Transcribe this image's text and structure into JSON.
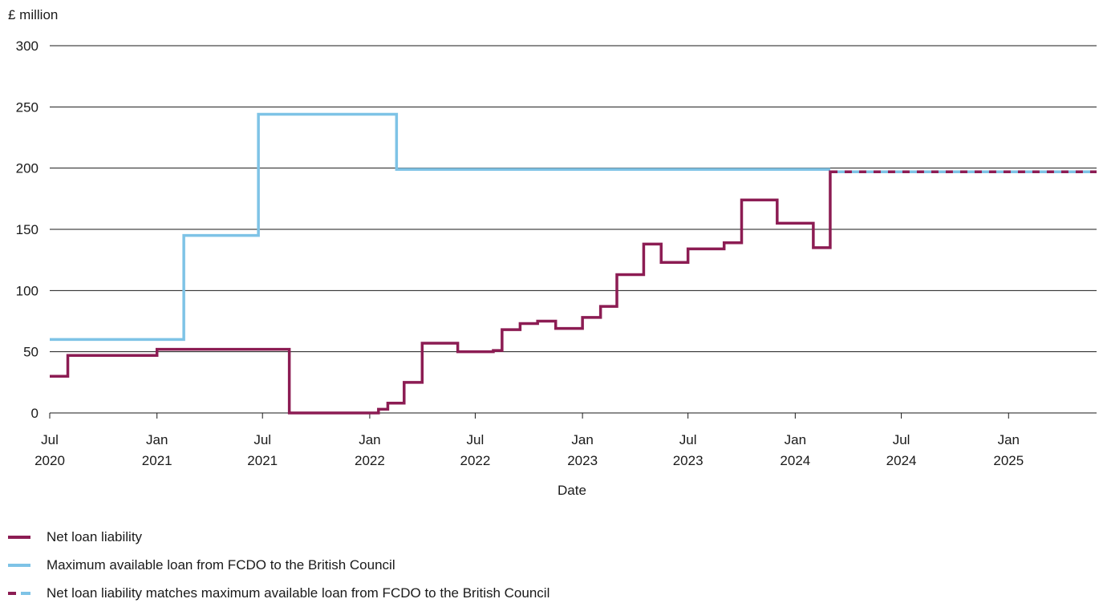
{
  "chart_data": {
    "type": "line",
    "ylabel": "£ million",
    "xlabel": "Date",
    "ylim": [
      0,
      300
    ],
    "yticks": [
      0,
      50,
      100,
      150,
      200,
      250,
      300
    ],
    "xlim": [
      "2020-07-01",
      "2025-06-01"
    ],
    "xticks": [
      {
        "date": "2020-07-01",
        "label1": "Jul",
        "label2": "2020"
      },
      {
        "date": "2021-01-01",
        "label1": "Jan",
        "label2": "2021"
      },
      {
        "date": "2021-07-01",
        "label1": "Jul",
        "label2": "2021"
      },
      {
        "date": "2022-01-01",
        "label1": "Jan",
        "label2": "2022"
      },
      {
        "date": "2022-07-01",
        "label1": "Jul",
        "label2": "2022"
      },
      {
        "date": "2023-01-01",
        "label1": "Jan",
        "label2": "2023"
      },
      {
        "date": "2023-07-01",
        "label1": "Jul",
        "label2": "2023"
      },
      {
        "date": "2024-01-01",
        "label1": "Jan",
        "label2": "2024"
      },
      {
        "date": "2024-07-01",
        "label1": "Jul",
        "label2": "2024"
      },
      {
        "date": "2025-01-01",
        "label1": "Jan",
        "label2": "2025"
      }
    ],
    "grid": "horizontal",
    "legend_position": "bottom",
    "series": [
      {
        "name": "Net loan liability",
        "color": "#8c1c53",
        "style": "solid-step",
        "points": [
          [
            "2020-07-01",
            30
          ],
          [
            "2020-08-01",
            47
          ],
          [
            "2021-01-01",
            52
          ],
          [
            "2021-08-16",
            0
          ],
          [
            "2022-01-16",
            3
          ],
          [
            "2022-02-01",
            8
          ],
          [
            "2022-03-01",
            25
          ],
          [
            "2022-04-01",
            57
          ],
          [
            "2022-06-01",
            50
          ],
          [
            "2022-08-01",
            51
          ],
          [
            "2022-08-16",
            68
          ],
          [
            "2022-09-16",
            73
          ],
          [
            "2022-10-16",
            75
          ],
          [
            "2022-11-16",
            69
          ],
          [
            "2023-01-01",
            78
          ],
          [
            "2023-02-01",
            87
          ],
          [
            "2023-03-01",
            113
          ],
          [
            "2023-04-16",
            138
          ],
          [
            "2023-05-16",
            123
          ],
          [
            "2023-07-01",
            134
          ],
          [
            "2023-09-01",
            139
          ],
          [
            "2023-10-01",
            174
          ],
          [
            "2023-12-01",
            155
          ],
          [
            "2024-02-01",
            135
          ],
          [
            "2024-03-01",
            197
          ],
          [
            "2024-03-16",
            197
          ]
        ]
      },
      {
        "name": "Maximum available loan from FCDO to the British Council",
        "color": "#7ec3e6",
        "style": "solid-step",
        "points": [
          [
            "2020-07-01",
            60
          ],
          [
            "2021-02-16",
            145
          ],
          [
            "2021-06-24",
            244
          ],
          [
            "2022-02-16",
            199
          ],
          [
            "2024-03-01",
            199
          ]
        ]
      },
      {
        "name": "Net loan liability matches maximum available loan from FCDO to the British Council",
        "colors": [
          "#8c1c53",
          "#7ec3e6"
        ],
        "style": "dashed-alternating",
        "points": [
          [
            "2024-03-01",
            197
          ],
          [
            "2025-06-01",
            197
          ]
        ]
      }
    ]
  },
  "legend": {
    "items": [
      {
        "label": "Net loan liability"
      },
      {
        "label": "Maximum available loan from FCDO to the British Council"
      },
      {
        "label": "Net loan liability matches maximum available loan from FCDO to the British Council"
      }
    ]
  }
}
